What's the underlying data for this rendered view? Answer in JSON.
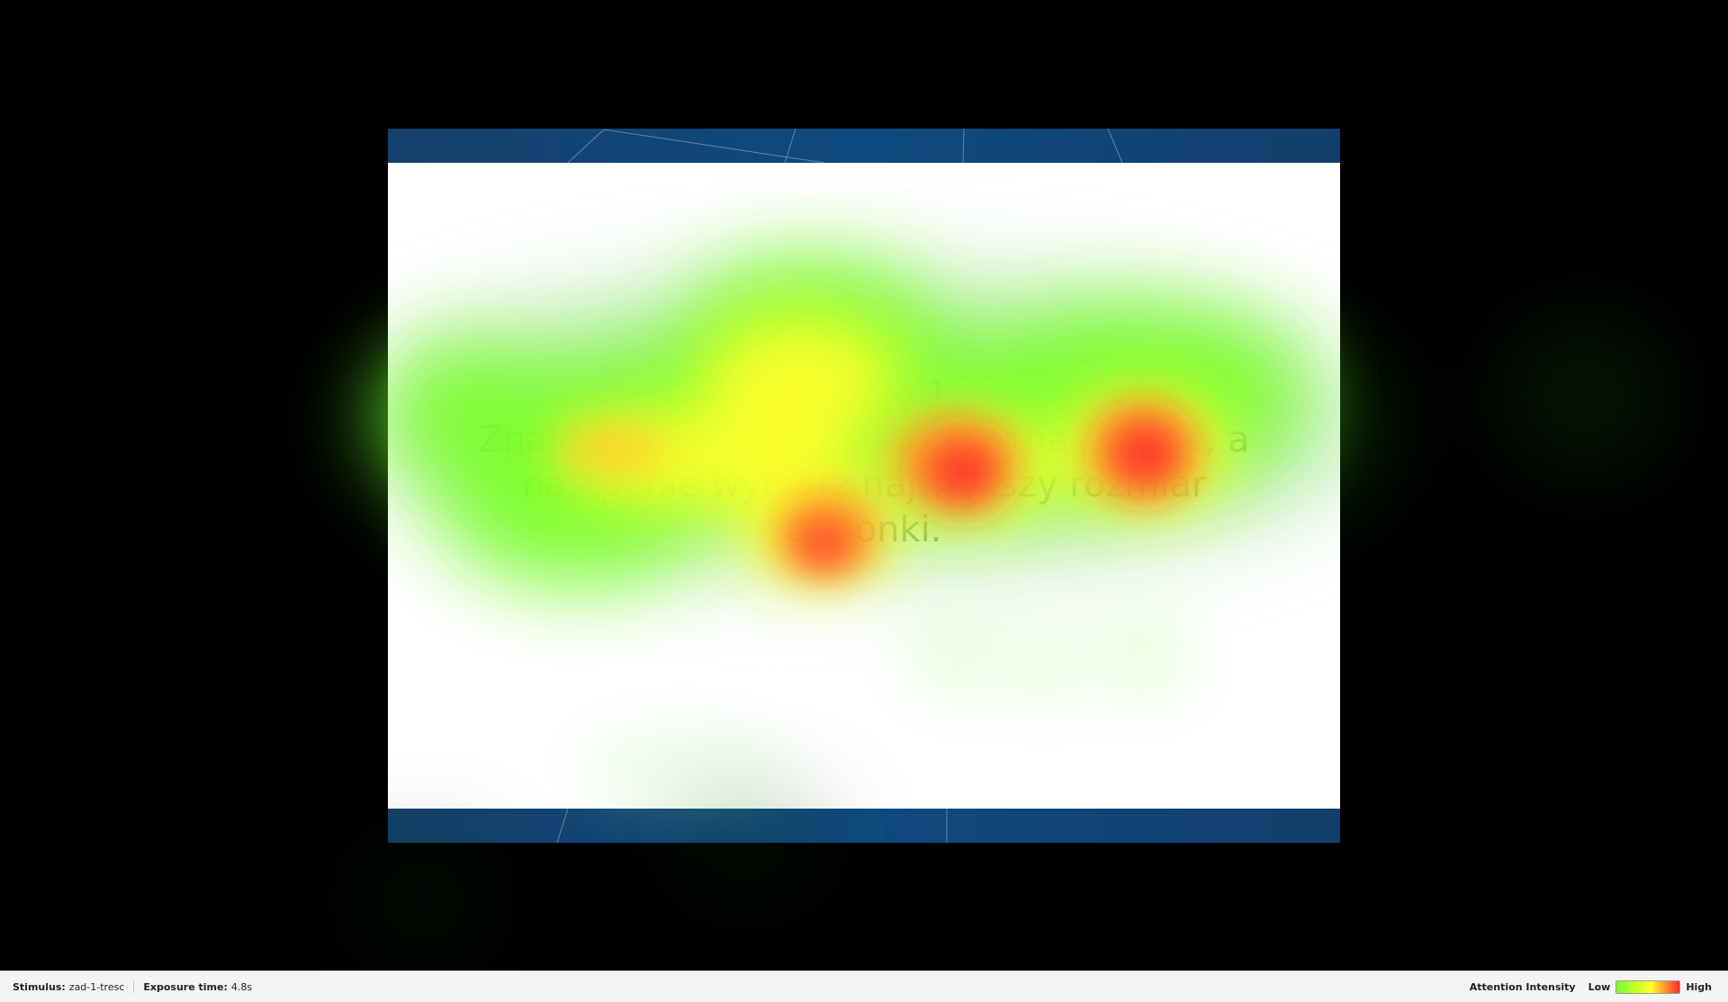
{
  "stimulus": {
    "task_lines": [
      "Zadanie 1.",
      "Znajdź narzędzia dostępności na stronie, a",
      "nastpenie wybierz największy rozmiar",
      "czcionki."
    ]
  },
  "statusbar": {
    "stimulus_label": "Stimulus:",
    "stimulus_value": "zad-1-tresc",
    "exposure_label": "Exposure time:",
    "exposure_value": "4.8s",
    "legend_title": "Attention Intensity",
    "legend_low": "Low",
    "legend_high": "High"
  },
  "colors": {
    "background": "#000000",
    "band": "#0e4a80",
    "heat_low": "#7cff2a",
    "heat_mid": "#ffff2a",
    "heat_high": "#ff2a2a"
  }
}
